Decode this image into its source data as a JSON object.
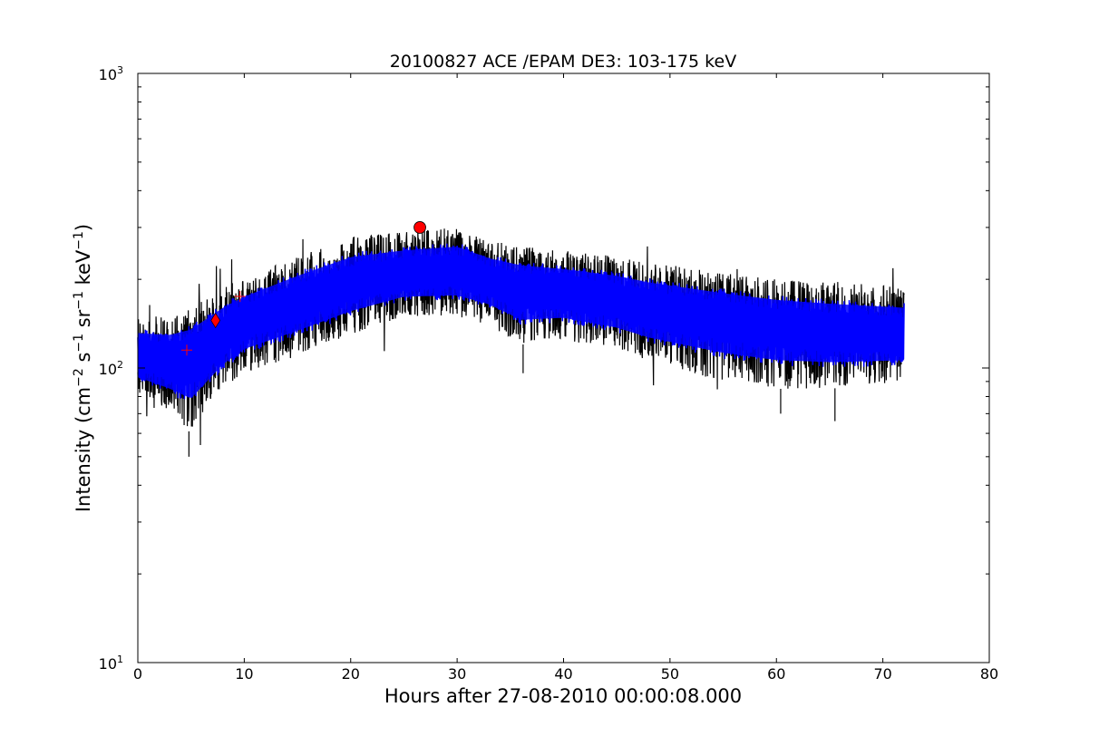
{
  "chart_data": {
    "type": "line",
    "title": "20100827 ACE /EPAM DE3: 103-175 keV",
    "xlabel": "Hours after 27-08-2010 00:00:08.000",
    "ylabel_parts": {
      "prefix": "Intensity (cm",
      "exp1": "−2",
      "s": " s",
      "exp2": "−1",
      "sr": " sr",
      "exp3": "−1",
      "kev": " keV",
      "exp4": "−1",
      "suffix": ")"
    },
    "xlim": [
      0,
      80
    ],
    "ylim": [
      10,
      1000
    ],
    "yscale": "log",
    "x_ticks": [
      "0",
      "10",
      "20",
      "30",
      "40",
      "50",
      "60",
      "70",
      "80"
    ],
    "y_ticks": [
      {
        "base": "10",
        "exp": "1",
        "value": 10
      },
      {
        "base": "10",
        "exp": "2",
        "value": 100
      },
      {
        "base": "10",
        "exp": "3",
        "value": 1000
      }
    ],
    "grid": false,
    "series": [
      {
        "role": "raw",
        "color": "#000000",
        "x_range": [
          0,
          72
        ],
        "envelope": [
          {
            "x": 0,
            "low": 80,
            "mid": 112,
            "high": 150
          },
          {
            "x": 3,
            "low": 70,
            "mid": 108,
            "high": 150
          },
          {
            "x": 5,
            "low": 60,
            "mid": 110,
            "high": 160
          },
          {
            "x": 8,
            "low": 85,
            "mid": 130,
            "high": 190
          },
          {
            "x": 10,
            "low": 95,
            "mid": 148,
            "high": 200
          },
          {
            "x": 15,
            "low": 110,
            "mid": 170,
            "high": 240
          },
          {
            "x": 20,
            "low": 130,
            "mid": 195,
            "high": 280
          },
          {
            "x": 25,
            "low": 150,
            "mid": 210,
            "high": 290
          },
          {
            "x": 30,
            "low": 150,
            "mid": 215,
            "high": 300
          },
          {
            "x": 33,
            "low": 140,
            "mid": 200,
            "high": 270
          },
          {
            "x": 36,
            "low": 120,
            "mid": 185,
            "high": 260
          },
          {
            "x": 40,
            "low": 125,
            "mid": 182,
            "high": 250
          },
          {
            "x": 45,
            "low": 115,
            "mid": 170,
            "high": 240
          },
          {
            "x": 48,
            "low": 105,
            "mid": 160,
            "high": 230
          },
          {
            "x": 55,
            "low": 90,
            "mid": 148,
            "high": 210
          },
          {
            "x": 60,
            "low": 85,
            "mid": 140,
            "high": 200
          },
          {
            "x": 65,
            "low": 85,
            "mid": 135,
            "high": 195
          },
          {
            "x": 72,
            "low": 90,
            "mid": 130,
            "high": 190
          }
        ],
        "min_dips": [
          {
            "x": 4.8,
            "y": 50
          },
          {
            "x": 60.4,
            "y": 70
          },
          {
            "x": 65.5,
            "y": 66
          },
          {
            "x": 36.2,
            "y": 96
          }
        ]
      },
      {
        "role": "smoothed",
        "color": "#0000ff",
        "x_range": [
          0,
          72
        ]
      }
    ],
    "markers": [
      {
        "shape": "plus",
        "x": 4.6,
        "y": 115,
        "color": "#ff0000"
      },
      {
        "shape": "diamond",
        "x": 7.3,
        "y": 145,
        "color": "#ff0000"
      },
      {
        "shape": "plus",
        "x": 9.6,
        "y": 175,
        "color": "#ff0000"
      },
      {
        "shape": "circle",
        "x": 26.5,
        "y": 300,
        "color": "#ff0000"
      }
    ]
  }
}
